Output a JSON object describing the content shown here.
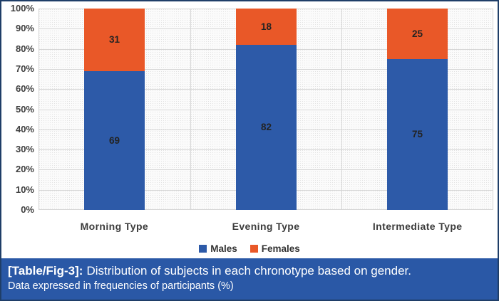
{
  "figure": {
    "caption": {
      "label": "[Table/Fig-3]:",
      "text": "Distribution of subjects in each chronotype based on gender.",
      "note": "Data expressed in frequencies of participants (%)"
    }
  },
  "colors": {
    "males_bar": "#2D5AA8",
    "females_bar": "#E95828",
    "caption_background": "#2A58A6",
    "outer_border": "#1F3E68",
    "gridline": "#D6D6D6",
    "axis_text": "#3F3F3F",
    "bar_label_text": "#232323",
    "caption_text": "#FFFFFF"
  },
  "chart_data": {
    "type": "bar",
    "stacked": true,
    "units": "percent",
    "title": "",
    "xlabel": "",
    "ylabel": "",
    "categories": [
      "Morning Type",
      "Evening Type",
      "Intermediate Type"
    ],
    "series": [
      {
        "name": "Males",
        "color": "#2D5AA8",
        "values": [
          69,
          82,
          75
        ]
      },
      {
        "name": "Females",
        "color": "#E95828",
        "values": [
          31,
          18,
          25
        ]
      }
    ],
    "y_ticks": [
      "100%",
      "90%",
      "80%",
      "70%",
      "60%",
      "50%",
      "40%",
      "30%",
      "20%",
      "10%",
      "0%"
    ],
    "ylim": [
      0,
      100
    ],
    "grid": true,
    "legend_position": "bottom"
  }
}
